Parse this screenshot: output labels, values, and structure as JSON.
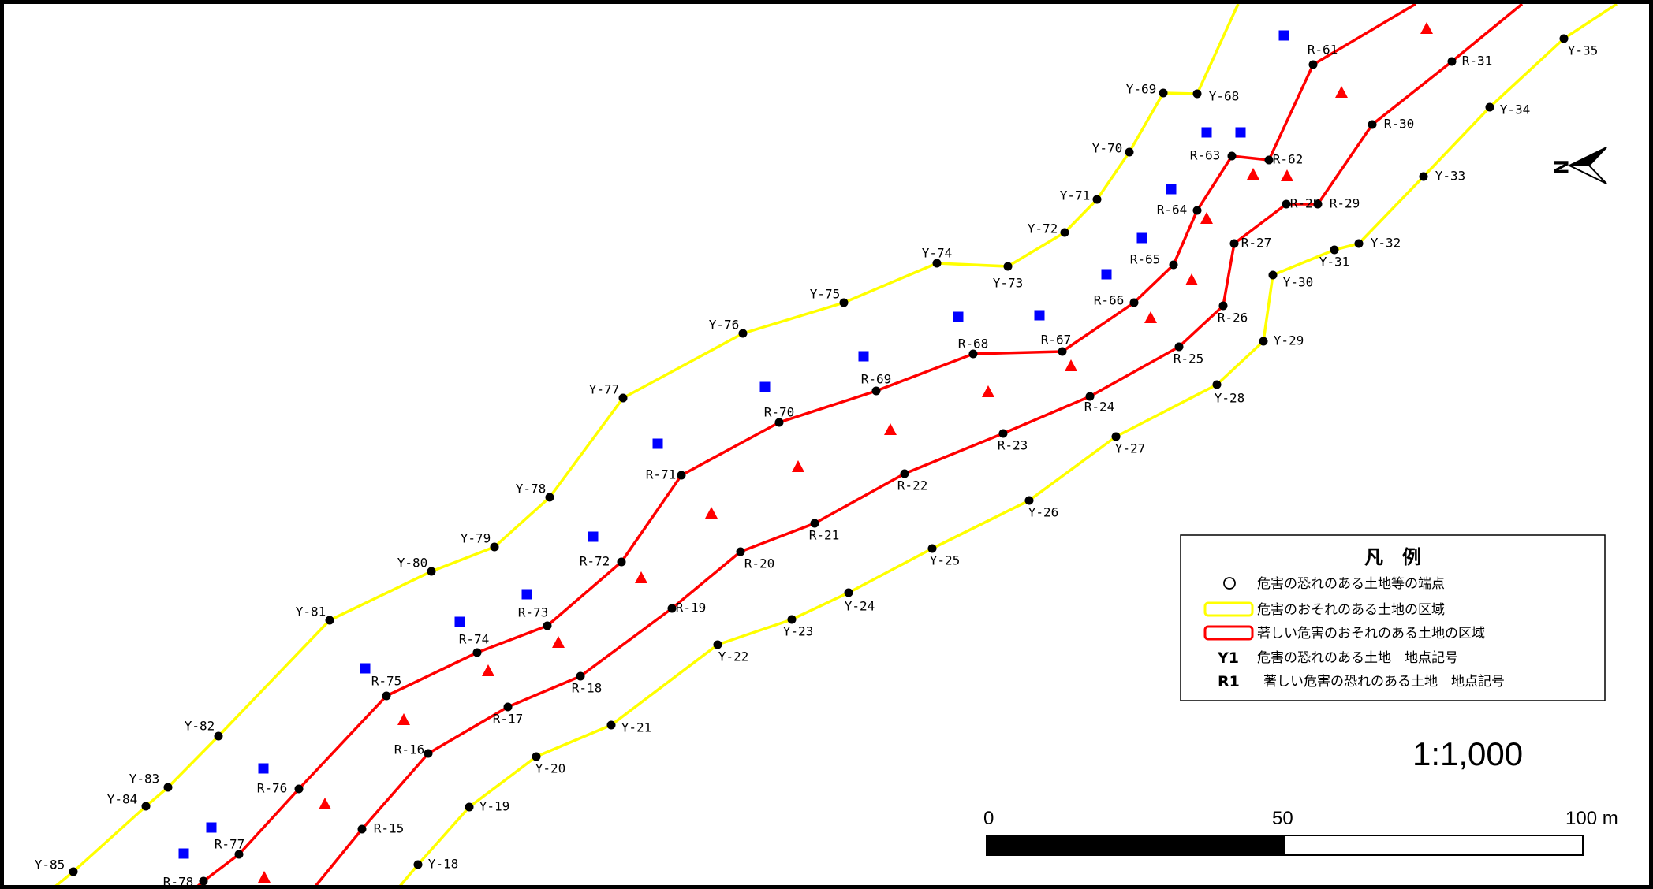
{
  "colors": {
    "yellow_zone": "#ffff00",
    "red_zone": "#ff0000",
    "blue_marker": "#0000ff",
    "red_marker": "#ff0000",
    "point": "#000000"
  },
  "legend": {
    "title": "凡　例",
    "items": [
      {
        "symbol": "circle",
        "text": "危害の恐れのある土地等の端点"
      },
      {
        "symbol": "yellow-box",
        "text": "危害のおそれのある土地の区域"
      },
      {
        "symbol": "red-box",
        "text": "著しい危害のおそれのある土地の区域"
      },
      {
        "symbol": "Y1",
        "text": "危害の恐れのある土地　地点記号"
      },
      {
        "symbol": "R1",
        "text": "著しい危害の恐れのある土地　地点記号"
      }
    ]
  },
  "scale": {
    "ratio": "1:1,000",
    "label_0": "0",
    "label_50": "50",
    "label_100": "100 m"
  },
  "north_label": "N",
  "lines": {
    "yellow_west": [
      "Y-85",
      "Y-84",
      "Y-83",
      "Y-82",
      "Y-81",
      "Y-80",
      "Y-79",
      "Y-78",
      "Y-77",
      "Y-76",
      "Y-75",
      "Y-74",
      "Y-73",
      "Y-72",
      "Y-71",
      "Y-70",
      "Y-69",
      "Y-68"
    ],
    "red_west": [
      "R-78",
      "R-77",
      "R-76",
      "R-75",
      "R-74",
      "R-73",
      "R-72",
      "R-71",
      "R-70",
      "R-69",
      "R-68",
      "R-67",
      "R-66",
      "R-65",
      "R-64",
      "R-63",
      "R-62",
      "R-61"
    ],
    "red_east": [
      "R-15",
      "R-16",
      "R-17",
      "R-18",
      "R-19",
      "R-20",
      "R-21",
      "R-22",
      "R-23",
      "R-24",
      "R-25",
      "R-26",
      "R-27",
      "R-28",
      "R-29",
      "R-30",
      "R-31"
    ],
    "yellow_east": [
      "Y-18",
      "Y-19",
      "Y-20",
      "Y-21",
      "Y-22",
      "Y-23",
      "Y-24",
      "Y-25",
      "Y-26",
      "Y-27",
      "Y-28",
      "Y-29",
      "Y-30",
      "Y-31",
      "Y-32",
      "Y-33",
      "Y-34",
      "Y-35"
    ]
  }
}
